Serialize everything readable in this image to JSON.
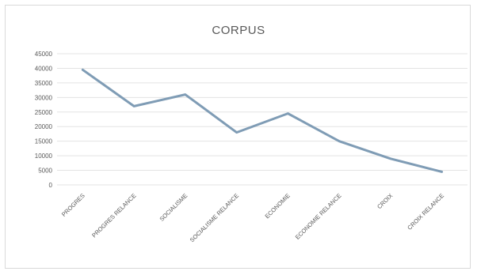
{
  "chart_data": {
    "type": "line",
    "title": "CORPUS",
    "xlabel": "",
    "ylabel": "",
    "categories": [
      "PROGRES",
      "PROGRES RELANCE",
      "SOCIALISME",
      "SOCIALISME RELANCE",
      "ECONOMIE",
      "ECONOMIE RELANCE",
      "CROIX",
      "CROIX RELANCE"
    ],
    "series": [
      {
        "values": [
          39500,
          27000,
          31000,
          18000,
          24500,
          15000,
          9000,
          4500
        ],
        "color": "#7f9cb5"
      }
    ],
    "ylim": [
      0,
      45000
    ],
    "yticks": [
      0,
      5000,
      10000,
      15000,
      20000,
      25000,
      30000,
      35000,
      40000,
      45000
    ],
    "grid": true,
    "legend": "none"
  }
}
